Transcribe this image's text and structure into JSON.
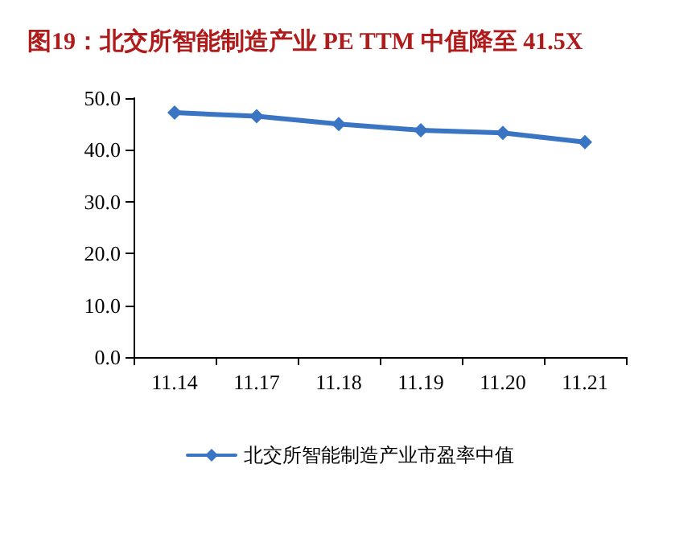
{
  "chart_data": {
    "type": "line",
    "title": "图19：北交所智能制造产业 PE TTM 中值降至 41.5X",
    "categories": [
      "11.14",
      "11.17",
      "11.18",
      "11.19",
      "11.20",
      "11.21"
    ],
    "series": [
      {
        "name": "北交所智能制造产业市盈率中值",
        "color": "#3a75c4",
        "values": [
          47.2,
          46.5,
          45.0,
          43.8,
          43.3,
          41.5
        ]
      }
    ],
    "ylim": [
      0,
      50
    ],
    "yticks": [
      {
        "value": 0,
        "label": "0.0"
      },
      {
        "value": 10,
        "label": "10.0"
      },
      {
        "value": 20,
        "label": "20.0"
      },
      {
        "value": 30,
        "label": "30.0"
      },
      {
        "value": 40,
        "label": "40.0"
      },
      {
        "value": 50,
        "label": "50.0"
      }
    ],
    "grid": false,
    "legend": "bottom",
    "marker": "diamond",
    "line_style": "solid"
  }
}
